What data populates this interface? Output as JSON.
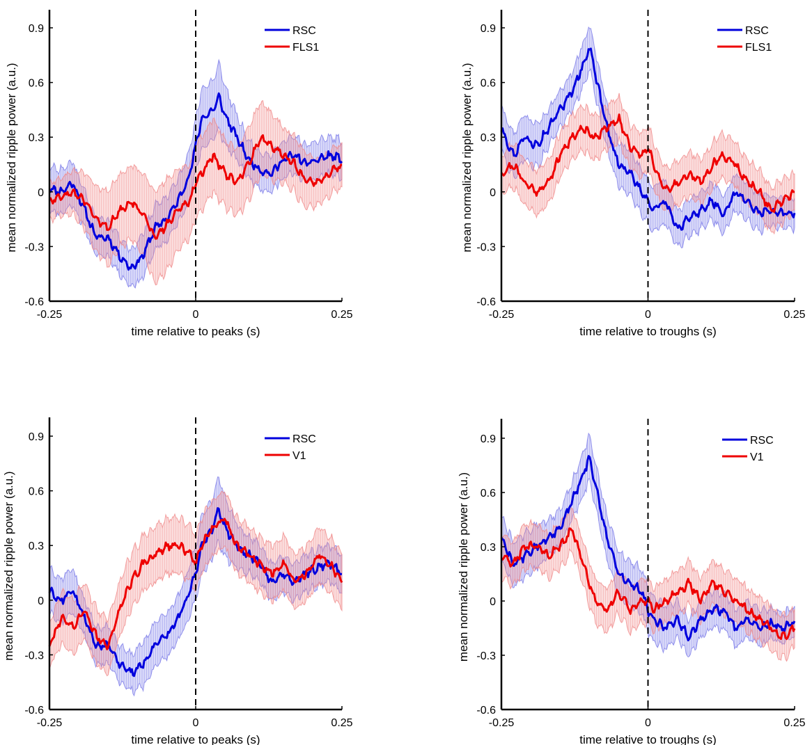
{
  "colors": {
    "series_a": "#0000dd",
    "series_a_band": "#7a7ae8",
    "series_b": "#ee0000",
    "series_b_band": "#f08a8a",
    "axis": "#000000",
    "event_line": "#000000"
  },
  "chart_data": [
    {
      "type": "line",
      "panel": "top-left",
      "xlabel": "time relative to peaks (s)",
      "ylabel": "mean normalized ripple power (a.u.)",
      "xlim": [
        -0.25,
        0.25
      ],
      "ylim": [
        -0.6,
        1.0
      ],
      "xticks": [
        -0.25,
        0,
        0.25
      ],
      "xtick_labels": [
        "-0.25",
        "0",
        "0.25"
      ],
      "yticks": [
        -0.6,
        -0.3,
        0,
        0.3,
        0.6,
        0.9
      ],
      "ytick_labels": [
        "-0.6",
        "-0.3",
        "0",
        "0.3",
        "0.6",
        "0.9"
      ],
      "event_line_x": 0,
      "legend_position": "top-right",
      "series": [
        {
          "name": "RSC",
          "x": [
            -0.25,
            -0.23,
            -0.21,
            -0.19,
            -0.17,
            -0.15,
            -0.13,
            -0.11,
            -0.09,
            -0.07,
            -0.05,
            -0.03,
            -0.01,
            0.0,
            0.01,
            0.03,
            0.04,
            0.05,
            0.07,
            0.09,
            0.11,
            0.13,
            0.15,
            0.17,
            0.19,
            0.21,
            0.23,
            0.25
          ],
          "values": [
            0.02,
            0.0,
            0.05,
            -0.1,
            -0.25,
            -0.25,
            -0.35,
            -0.42,
            -0.35,
            -0.2,
            -0.15,
            -0.05,
            0.1,
            0.25,
            0.4,
            0.45,
            0.52,
            0.42,
            0.3,
            0.18,
            0.12,
            0.1,
            0.18,
            0.2,
            0.15,
            0.18,
            0.2,
            0.18
          ],
          "band": [
            0.12,
            0.12,
            0.12,
            0.1,
            0.1,
            0.1,
            0.1,
            0.1,
            0.12,
            0.12,
            0.12,
            0.12,
            0.14,
            0.14,
            0.16,
            0.16,
            0.18,
            0.16,
            0.12,
            0.1,
            0.1,
            0.1,
            0.1,
            0.1,
            0.1,
            0.1,
            0.1,
            0.1
          ]
        },
        {
          "name": "FLS1",
          "x": [
            -0.25,
            -0.23,
            -0.21,
            -0.19,
            -0.17,
            -0.15,
            -0.13,
            -0.11,
            -0.09,
            -0.07,
            -0.05,
            -0.03,
            -0.01,
            0.0,
            0.01,
            0.03,
            0.05,
            0.07,
            0.09,
            0.11,
            0.13,
            0.15,
            0.17,
            0.19,
            0.21,
            0.23,
            0.25
          ],
          "values": [
            -0.05,
            -0.02,
            0.0,
            -0.05,
            -0.15,
            -0.2,
            -0.1,
            -0.05,
            -0.12,
            -0.25,
            -0.18,
            -0.1,
            -0.05,
            0.05,
            0.1,
            0.2,
            0.1,
            0.05,
            0.15,
            0.3,
            0.25,
            0.2,
            0.15,
            0.05,
            0.05,
            0.1,
            0.15
          ],
          "band": [
            0.1,
            0.1,
            0.12,
            0.15,
            0.18,
            0.2,
            0.2,
            0.2,
            0.22,
            0.25,
            0.25,
            0.22,
            0.2,
            0.2,
            0.2,
            0.2,
            0.18,
            0.18,
            0.2,
            0.2,
            0.18,
            0.15,
            0.15,
            0.15,
            0.12,
            0.12,
            0.12
          ]
        }
      ]
    },
    {
      "type": "line",
      "panel": "top-right",
      "xlabel": "time relative to troughs (s)",
      "ylabel": "mean normalized ripple power (a.u.)",
      "xlim": [
        -0.25,
        0.25
      ],
      "ylim": [
        -0.6,
        1.0
      ],
      "xticks": [
        -0.25,
        0,
        0.25
      ],
      "xtick_labels": [
        "-0.25",
        "0",
        "0.25"
      ],
      "yticks": [
        -0.6,
        -0.3,
        0,
        0.3,
        0.6,
        0.9
      ],
      "ytick_labels": [
        "-0.6",
        "-0.3",
        "0",
        "0.3",
        "0.6",
        "0.9"
      ],
      "event_line_x": 0,
      "legend_position": "top-right",
      "series": [
        {
          "name": "RSC",
          "x": [
            -0.25,
            -0.23,
            -0.21,
            -0.19,
            -0.17,
            -0.15,
            -0.13,
            -0.11,
            -0.1,
            -0.09,
            -0.07,
            -0.05,
            -0.03,
            -0.01,
            0.0,
            0.01,
            0.03,
            0.05,
            0.07,
            0.09,
            0.11,
            0.13,
            0.15,
            0.17,
            0.19,
            0.21,
            0.23,
            0.25
          ],
          "values": [
            0.35,
            0.2,
            0.3,
            0.25,
            0.35,
            0.45,
            0.55,
            0.7,
            0.8,
            0.65,
            0.35,
            0.15,
            0.1,
            0.0,
            -0.05,
            -0.1,
            -0.05,
            -0.2,
            -0.15,
            -0.1,
            -0.05,
            -0.12,
            0.0,
            -0.05,
            -0.12,
            -0.1,
            -0.12,
            -0.12
          ],
          "band": [
            0.12,
            0.12,
            0.12,
            0.12,
            0.1,
            0.1,
            0.1,
            0.12,
            0.12,
            0.12,
            0.12,
            0.12,
            0.12,
            0.12,
            0.12,
            0.12,
            0.12,
            0.1,
            0.1,
            0.1,
            0.1,
            0.1,
            0.1,
            0.1,
            0.1,
            0.08,
            0.08,
            0.08
          ]
        },
        {
          "name": "FLS1",
          "x": [
            -0.25,
            -0.23,
            -0.21,
            -0.19,
            -0.17,
            -0.15,
            -0.13,
            -0.11,
            -0.09,
            -0.07,
            -0.05,
            -0.03,
            -0.01,
            0.0,
            0.01,
            0.03,
            0.05,
            0.07,
            0.09,
            0.11,
            0.13,
            0.15,
            0.17,
            0.19,
            0.21,
            0.23,
            0.25
          ],
          "values": [
            0.1,
            0.15,
            0.05,
            0.0,
            0.05,
            0.2,
            0.3,
            0.35,
            0.3,
            0.35,
            0.4,
            0.25,
            0.2,
            0.25,
            0.15,
            0.0,
            0.05,
            0.1,
            0.05,
            0.15,
            0.2,
            0.15,
            0.05,
            0.0,
            -0.1,
            -0.05,
            0.0
          ],
          "band": [
            0.1,
            0.12,
            0.12,
            0.12,
            0.12,
            0.12,
            0.12,
            0.12,
            0.12,
            0.12,
            0.12,
            0.12,
            0.12,
            0.12,
            0.12,
            0.12,
            0.12,
            0.12,
            0.12,
            0.12,
            0.12,
            0.12,
            0.12,
            0.12,
            0.12,
            0.12,
            0.1
          ]
        }
      ]
    },
    {
      "type": "line",
      "panel": "bottom-left",
      "xlabel": "time relative to peaks (s)",
      "ylabel": "mean normalized ripple power (a.u.)",
      "xlim": [
        -0.25,
        0.25
      ],
      "ylim": [
        -0.6,
        1.0
      ],
      "xticks": [
        -0.25,
        0,
        0.25
      ],
      "xtick_labels": [
        "-0.25",
        "0",
        "0.25"
      ],
      "yticks": [
        -0.6,
        -0.3,
        0,
        0.3,
        0.6,
        0.9
      ],
      "ytick_labels": [
        "-0.6",
        "-0.3",
        "0",
        "0.3",
        "0.6",
        "0.9"
      ],
      "event_line_x": 0,
      "legend_position": "top-right",
      "series": [
        {
          "name": "RSC",
          "x": [
            -0.25,
            -0.23,
            -0.21,
            -0.19,
            -0.17,
            -0.15,
            -0.13,
            -0.11,
            -0.09,
            -0.07,
            -0.05,
            -0.03,
            -0.01,
            0.0,
            0.01,
            0.03,
            0.04,
            0.05,
            0.07,
            0.09,
            0.11,
            0.13,
            0.15,
            0.17,
            0.19,
            0.21,
            0.23,
            0.25
          ],
          "values": [
            0.05,
            0.0,
            0.05,
            -0.1,
            -0.25,
            -0.25,
            -0.35,
            -0.4,
            -0.35,
            -0.25,
            -0.2,
            -0.1,
            0.05,
            0.15,
            0.3,
            0.4,
            0.5,
            0.4,
            0.3,
            0.25,
            0.2,
            0.1,
            0.15,
            0.1,
            0.15,
            0.18,
            0.2,
            0.15
          ],
          "band": [
            0.12,
            0.12,
            0.12,
            0.1,
            0.1,
            0.1,
            0.1,
            0.1,
            0.12,
            0.12,
            0.12,
            0.12,
            0.14,
            0.14,
            0.16,
            0.16,
            0.18,
            0.16,
            0.12,
            0.1,
            0.1,
            0.1,
            0.1,
            0.1,
            0.1,
            0.1,
            0.1,
            0.1
          ]
        },
        {
          "name": "V1",
          "x": [
            -0.25,
            -0.23,
            -0.21,
            -0.19,
            -0.17,
            -0.15,
            -0.13,
            -0.11,
            -0.09,
            -0.07,
            -0.05,
            -0.03,
            -0.01,
            0.0,
            0.01,
            0.03,
            0.05,
            0.07,
            0.09,
            0.11,
            0.13,
            0.15,
            0.17,
            0.19,
            0.21,
            0.23,
            0.25
          ],
          "values": [
            -0.25,
            -0.1,
            -0.15,
            -0.05,
            -0.2,
            -0.25,
            -0.05,
            0.1,
            0.2,
            0.25,
            0.3,
            0.3,
            0.25,
            0.2,
            0.3,
            0.4,
            0.45,
            0.3,
            0.25,
            0.2,
            0.15,
            0.2,
            0.1,
            0.15,
            0.25,
            0.2,
            0.1
          ],
          "band": [
            0.12,
            0.14,
            0.15,
            0.15,
            0.15,
            0.15,
            0.15,
            0.15,
            0.15,
            0.15,
            0.15,
            0.15,
            0.15,
            0.15,
            0.15,
            0.15,
            0.15,
            0.15,
            0.15,
            0.15,
            0.15,
            0.15,
            0.15,
            0.15,
            0.15,
            0.15,
            0.15
          ]
        }
      ]
    },
    {
      "type": "line",
      "panel": "bottom-right",
      "xlabel": "time relative to troughs (s)",
      "ylabel": "mean normalized ripple power (a.u.)",
      "xlim": [
        -0.25,
        0.25
      ],
      "ylim": [
        -0.6,
        1.0
      ],
      "xticks": [
        -0.25,
        0,
        0.25
      ],
      "xtick_labels": [
        "-0.25",
        "0",
        "0.25"
      ],
      "yticks": [
        -0.6,
        -0.3,
        0,
        0.3,
        0.6,
        0.9
      ],
      "ytick_labels": [
        "-0.6",
        "-0.3",
        "0",
        "0.3",
        "0.6",
        "0.9"
      ],
      "event_line_x": 0,
      "legend_position": "top-right",
      "series": [
        {
          "name": "RSC",
          "x": [
            -0.25,
            -0.23,
            -0.21,
            -0.19,
            -0.17,
            -0.15,
            -0.13,
            -0.11,
            -0.1,
            -0.09,
            -0.07,
            -0.05,
            -0.03,
            -0.01,
            0.0,
            0.01,
            0.03,
            0.05,
            0.07,
            0.09,
            0.11,
            0.13,
            0.15,
            0.17,
            0.19,
            0.21,
            0.23,
            0.25
          ],
          "values": [
            0.35,
            0.2,
            0.25,
            0.3,
            0.35,
            0.4,
            0.55,
            0.7,
            0.8,
            0.65,
            0.35,
            0.15,
            0.1,
            0.05,
            -0.05,
            -0.1,
            -0.15,
            -0.1,
            -0.2,
            -0.1,
            -0.05,
            -0.05,
            -0.15,
            -0.1,
            -0.15,
            -0.12,
            -0.15,
            -0.12
          ],
          "band": [
            0.12,
            0.12,
            0.12,
            0.12,
            0.1,
            0.1,
            0.1,
            0.12,
            0.12,
            0.12,
            0.12,
            0.12,
            0.12,
            0.12,
            0.12,
            0.12,
            0.12,
            0.1,
            0.1,
            0.1,
            0.1,
            0.1,
            0.1,
            0.1,
            0.1,
            0.08,
            0.08,
            0.08
          ]
        },
        {
          "name": "V1",
          "x": [
            -0.25,
            -0.23,
            -0.21,
            -0.19,
            -0.17,
            -0.15,
            -0.13,
            -0.11,
            -0.09,
            -0.07,
            -0.05,
            -0.03,
            -0.01,
            0.0,
            0.01,
            0.03,
            0.05,
            0.07,
            0.09,
            0.11,
            0.13,
            0.15,
            0.17,
            0.19,
            0.21,
            0.23,
            0.25
          ],
          "values": [
            0.25,
            0.2,
            0.3,
            0.3,
            0.25,
            0.3,
            0.4,
            0.2,
            0.0,
            -0.05,
            0.05,
            -0.05,
            0.0,
            0.0,
            -0.05,
            0.0,
            0.05,
            0.1,
            0.0,
            0.1,
            0.05,
            0.0,
            -0.05,
            -0.1,
            -0.15,
            -0.2,
            -0.15
          ],
          "band": [
            0.12,
            0.12,
            0.12,
            0.12,
            0.12,
            0.12,
            0.12,
            0.12,
            0.12,
            0.12,
            0.12,
            0.12,
            0.12,
            0.12,
            0.12,
            0.12,
            0.12,
            0.12,
            0.12,
            0.12,
            0.12,
            0.12,
            0.12,
            0.12,
            0.12,
            0.12,
            0.1
          ]
        }
      ]
    }
  ]
}
